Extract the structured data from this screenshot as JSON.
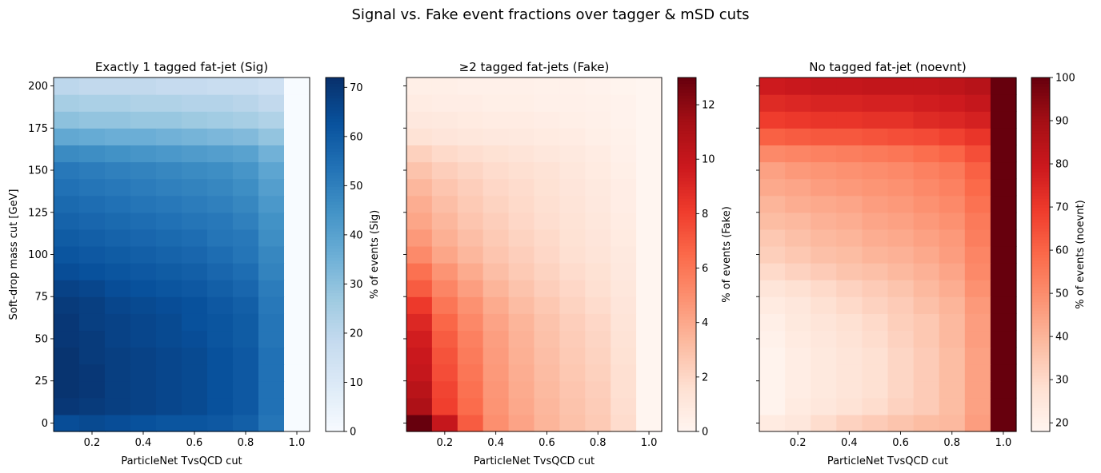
{
  "figure": {
    "suptitle": "Signal vs. Fake event fractions over tagger & mSD cuts"
  },
  "chart_data": [
    {
      "type": "heatmap",
      "title": "Exactly 1 tagged fat-jet (Sig)",
      "xlabel": "ParticleNet TvsQCD cut",
      "ylabel": "Soft-drop mass cut [GeV]",
      "colorbar_label": "% of events (Sig)",
      "colormap": "Blues",
      "x": [
        0.1,
        0.2,
        0.3,
        0.4,
        0.5,
        0.6,
        0.7,
        0.8,
        0.9,
        1.0
      ],
      "y": [
        0,
        10,
        20,
        30,
        40,
        50,
        60,
        70,
        80,
        90,
        100,
        110,
        120,
        130,
        140,
        150,
        160,
        170,
        180,
        190,
        200
      ],
      "xlim": [
        0.05,
        1.05
      ],
      "ylim": [
        -5,
        205
      ],
      "xticks": [
        "0.2",
        "0.4",
        "0.6",
        "0.8",
        "1.0"
      ],
      "xtick_values": [
        0.2,
        0.4,
        0.6,
        0.8,
        1.0
      ],
      "yticks": [
        "0",
        "25",
        "50",
        "75",
        "100",
        "125",
        "150",
        "175",
        "200"
      ],
      "ytick_values": [
        0,
        25,
        50,
        75,
        100,
        125,
        150,
        175,
        200
      ],
      "clim": [
        0,
        72
      ],
      "cbar_ticks": [
        "0",
        "10",
        "20",
        "30",
        "40",
        "50",
        "60",
        "70"
      ],
      "cbar_tick_values": [
        0,
        10,
        20,
        30,
        40,
        50,
        60,
        70
      ],
      "z": [
        [
          64,
          65,
          64,
          63,
          62,
          62,
          61,
          59,
          53,
          0
        ],
        [
          70,
          69,
          68,
          67,
          66,
          65,
          63,
          61,
          54,
          0
        ],
        [
          71,
          70,
          68,
          67,
          66,
          65,
          63,
          61,
          54,
          0
        ],
        [
          71,
          70,
          68,
          67,
          66,
          65,
          63,
          61,
          54,
          0
        ],
        [
          71,
          69,
          68,
          67,
          66,
          65,
          63,
          61,
          54,
          0
        ],
        [
          70,
          69,
          67,
          66,
          65,
          64,
          62,
          60,
          53,
          0
        ],
        [
          70,
          68,
          67,
          66,
          65,
          63,
          62,
          60,
          53,
          0
        ],
        [
          69,
          68,
          66,
          65,
          64,
          63,
          61,
          59,
          52,
          0
        ],
        [
          67,
          66,
          64,
          63,
          62,
          61,
          59,
          57,
          51,
          0
        ],
        [
          64,
          63,
          62,
          61,
          60,
          59,
          57,
          55,
          49,
          0
        ],
        [
          62,
          61,
          60,
          59,
          58,
          57,
          55,
          53,
          48,
          0
        ],
        [
          60,
          59,
          58,
          57,
          56,
          55,
          53,
          52,
          46,
          0
        ],
        [
          58,
          57,
          56,
          55,
          54,
          53,
          52,
          50,
          45,
          0
        ],
        [
          56,
          55,
          54,
          53,
          52,
          51,
          50,
          48,
          43,
          0
        ],
        [
          54,
          53,
          52,
          51,
          50,
          49,
          48,
          46,
          41,
          0
        ],
        [
          52,
          51,
          50,
          49,
          48,
          47,
          46,
          44,
          39,
          0
        ],
        [
          47,
          46,
          45,
          44,
          43,
          42,
          41,
          40,
          35,
          0
        ],
        [
          38,
          37,
          36,
          36,
          35,
          34,
          33,
          32,
          29,
          0
        ],
        [
          30,
          29,
          29,
          28,
          28,
          27,
          26,
          25,
          23,
          0
        ],
        [
          25,
          24,
          24,
          23,
          23,
          22,
          22,
          21,
          19,
          0
        ],
        [
          20,
          19,
          19,
          19,
          18,
          18,
          17,
          17,
          15,
          0
        ]
      ]
    },
    {
      "type": "heatmap",
      "title": "≥2 tagged fat-jets (Fake)",
      "xlabel": "ParticleNet TvsQCD cut",
      "ylabel": "",
      "colorbar_label": "% of events (Fake)",
      "colormap": "Reds",
      "x": [
        0.1,
        0.2,
        0.3,
        0.4,
        0.5,
        0.6,
        0.7,
        0.8,
        0.9,
        1.0
      ],
      "y": [
        0,
        10,
        20,
        30,
        40,
        50,
        60,
        70,
        80,
        90,
        100,
        110,
        120,
        130,
        140,
        150,
        160,
        170,
        180,
        190,
        200
      ],
      "xlim": [
        0.05,
        1.05
      ],
      "ylim": [
        -5,
        205
      ],
      "xticks": [
        "0.2",
        "0.4",
        "0.6",
        "0.8",
        "1.0"
      ],
      "xtick_values": [
        0.2,
        0.4,
        0.6,
        0.8,
        1.0
      ],
      "yticks": [],
      "ytick_values": [
        0,
        25,
        50,
        75,
        100,
        125,
        150,
        175,
        200
      ],
      "clim": [
        0,
        13
      ],
      "cbar_ticks": [
        "0",
        "2",
        "4",
        "6",
        "8",
        "10",
        "12"
      ],
      "cbar_tick_values": [
        0,
        2,
        4,
        6,
        8,
        10,
        12
      ],
      "z": [
        [
          13.0,
          10.0,
          7.0,
          5.0,
          4.2,
          3.5,
          3.0,
          2.6,
          1.8,
          0
        ],
        [
          11.0,
          8.0,
          6.4,
          4.8,
          4.0,
          3.4,
          2.9,
          2.5,
          1.7,
          0
        ],
        [
          10.5,
          7.8,
          6.2,
          4.7,
          3.9,
          3.3,
          2.8,
          2.4,
          1.6,
          0
        ],
        [
          10.0,
          7.5,
          6.0,
          4.6,
          3.8,
          3.2,
          2.7,
          2.3,
          1.6,
          0
        ],
        [
          9.8,
          7.3,
          5.8,
          4.5,
          3.7,
          3.1,
          2.6,
          2.2,
          1.5,
          0
        ],
        [
          9.5,
          7.0,
          5.6,
          4.4,
          3.6,
          3.0,
          2.5,
          2.1,
          1.4,
          0
        ],
        [
          9.0,
          6.6,
          5.3,
          4.2,
          3.5,
          2.9,
          2.4,
          2.0,
          1.3,
          0
        ],
        [
          8.2,
          6.0,
          4.9,
          3.9,
          3.2,
          2.7,
          2.2,
          1.8,
          1.2,
          0
        ],
        [
          7.0,
          5.4,
          4.4,
          3.5,
          2.9,
          2.4,
          2.0,
          1.6,
          1.1,
          0
        ],
        [
          6.2,
          4.8,
          3.9,
          3.1,
          2.6,
          2.2,
          1.8,
          1.5,
          1.0,
          0
        ],
        [
          5.2,
          4.1,
          3.4,
          2.8,
          2.4,
          2.0,
          1.6,
          1.3,
          0.9,
          0
        ],
        [
          4.6,
          3.7,
          3.1,
          2.6,
          2.2,
          1.9,
          1.5,
          1.2,
          0.8,
          0
        ],
        [
          4.1,
          3.4,
          2.8,
          2.4,
          2.0,
          1.7,
          1.4,
          1.1,
          0.7,
          0
        ],
        [
          3.8,
          3.1,
          2.6,
          2.2,
          1.9,
          1.6,
          1.3,
          1.0,
          0.6,
          0
        ],
        [
          3.4,
          2.8,
          2.4,
          2.0,
          1.8,
          1.5,
          1.2,
          0.9,
          0.6,
          0
        ],
        [
          2.9,
          2.4,
          2.1,
          1.8,
          1.6,
          1.4,
          1.1,
          0.8,
          0.5,
          0
        ],
        [
          2.3,
          1.9,
          1.7,
          1.5,
          1.3,
          1.1,
          0.9,
          0.7,
          0.4,
          0
        ],
        [
          1.4,
          1.2,
          1.1,
          1.0,
          0.9,
          0.8,
          0.7,
          0.5,
          0.3,
          0
        ],
        [
          1.0,
          0.9,
          0.8,
          0.7,
          0.7,
          0.6,
          0.5,
          0.4,
          0.2,
          0
        ],
        [
          0.7,
          0.6,
          0.6,
          0.5,
          0.5,
          0.4,
          0.4,
          0.3,
          0.2,
          0
        ],
        [
          0.5,
          0.5,
          0.4,
          0.4,
          0.4,
          0.3,
          0.3,
          0.2,
          0.1,
          0
        ]
      ]
    },
    {
      "type": "heatmap",
      "title": "No tagged fat-jet (noevnt)",
      "xlabel": "ParticleNet TvsQCD cut",
      "ylabel": "",
      "colorbar_label": "% of events (noevnt)",
      "colormap": "Reds",
      "x": [
        0.1,
        0.2,
        0.3,
        0.4,
        0.5,
        0.6,
        0.7,
        0.8,
        0.9,
        1.0
      ],
      "y": [
        0,
        10,
        20,
        30,
        40,
        50,
        60,
        70,
        80,
        90,
        100,
        110,
        120,
        130,
        140,
        150,
        160,
        170,
        180,
        190,
        200
      ],
      "xlim": [
        0.05,
        1.05
      ],
      "ylim": [
        -5,
        205
      ],
      "xticks": [
        "0.2",
        "0.4",
        "0.6",
        "0.8",
        "1.0"
      ],
      "xtick_values": [
        0.2,
        0.4,
        0.6,
        0.8,
        1.0
      ],
      "yticks": [],
      "ytick_values": [
        0,
        25,
        50,
        75,
        100,
        125,
        150,
        175,
        200
      ],
      "clim": [
        18,
        100
      ],
      "cbar_ticks": [
        "20",
        "30",
        "40",
        "50",
        "60",
        "70",
        "80",
        "90",
        "100"
      ],
      "cbar_tick_values": [
        20,
        30,
        40,
        50,
        60,
        70,
        80,
        90,
        100
      ],
      "z": [
        [
          23,
          25,
          29,
          32,
          34,
          36,
          38,
          39,
          46,
          100
        ],
        [
          19,
          23,
          25,
          27,
          29,
          32,
          34,
          38,
          45,
          100
        ],
        [
          19,
          22,
          24,
          26,
          28,
          31,
          34,
          38,
          45,
          100
        ],
        [
          19,
          22,
          24,
          26,
          28,
          31,
          34,
          38,
          45,
          100
        ],
        [
          19,
          22,
          24,
          26,
          28,
          31,
          34,
          38,
          45,
          100
        ],
        [
          20,
          23,
          25,
          27,
          29,
          32,
          35,
          39,
          46,
          100
        ],
        [
          21,
          24,
          26,
          28,
          30,
          33,
          35,
          39,
          46,
          100
        ],
        [
          23,
          25,
          28,
          30,
          32,
          34,
          37,
          40,
          47,
          100
        ],
        [
          26,
          28,
          30,
          32,
          34,
          36,
          39,
          42,
          49,
          100
        ],
        [
          30,
          32,
          34,
          36,
          37,
          39,
          41,
          44,
          51,
          100
        ],
        [
          33,
          35,
          37,
          38,
          40,
          41,
          43,
          46,
          52,
          100
        ],
        [
          35,
          37,
          39,
          40,
          42,
          43,
          45,
          47,
          54,
          100
        ],
        [
          38,
          39,
          41,
          42,
          44,
          45,
          47,
          49,
          55,
          100
        ],
        [
          40,
          42,
          43,
          44,
          46,
          47,
          49,
          51,
          57,
          100
        ],
        [
          43,
          44,
          46,
          47,
          48,
          49,
          51,
          53,
          59,
          100
        ],
        [
          45,
          47,
          48,
          49,
          50,
          51,
          53,
          55,
          61,
          100
        ],
        [
          51,
          52,
          53,
          54,
          55,
          56,
          58,
          60,
          65,
          100
        ],
        [
          61,
          62,
          63,
          63,
          64,
          65,
          66,
          68,
          71,
          100
        ],
        [
          69,
          70,
          71,
          71,
          72,
          72,
          74,
          75,
          77,
          100
        ],
        [
          74,
          75,
          76,
          76,
          77,
          77,
          78,
          79,
          81,
          100
        ],
        [
          79,
          80,
          81,
          81,
          82,
          82,
          82,
          83,
          85,
          100
        ]
      ]
    }
  ]
}
